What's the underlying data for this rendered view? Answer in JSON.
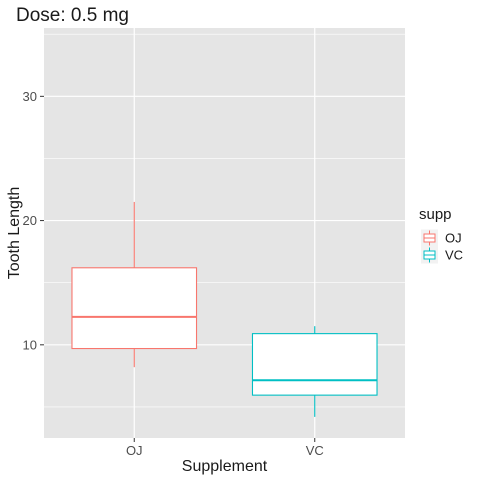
{
  "chart_data": {
    "type": "box",
    "title": "Dose: 0.5 mg",
    "xlabel": "Supplement",
    "ylabel": "Tooth Length",
    "categories": [
      "OJ",
      "VC"
    ],
    "ylim": [
      2.5,
      35.5
    ],
    "yticks": [
      10,
      20,
      30
    ],
    "grid": true,
    "legend": {
      "title": "supp",
      "position": "right",
      "entries": [
        {
          "label": "OJ",
          "color": "#F8766D"
        },
        {
          "label": "VC",
          "color": "#00BFC4"
        }
      ]
    },
    "boxes": [
      {
        "category": "OJ",
        "color": "#F8766D",
        "whisker_low": 8.2,
        "q1": 9.7,
        "median": 12.25,
        "q3": 16.2,
        "whisker_high": 21.5
      },
      {
        "category": "VC",
        "color": "#00BFC4",
        "whisker_low": 4.2,
        "q1": 5.95,
        "median": 7.15,
        "q3": 10.9,
        "whisker_high": 11.5
      }
    ]
  },
  "colors": {
    "panel": "#E5E5E5",
    "grid_major": "#FFFFFF"
  }
}
